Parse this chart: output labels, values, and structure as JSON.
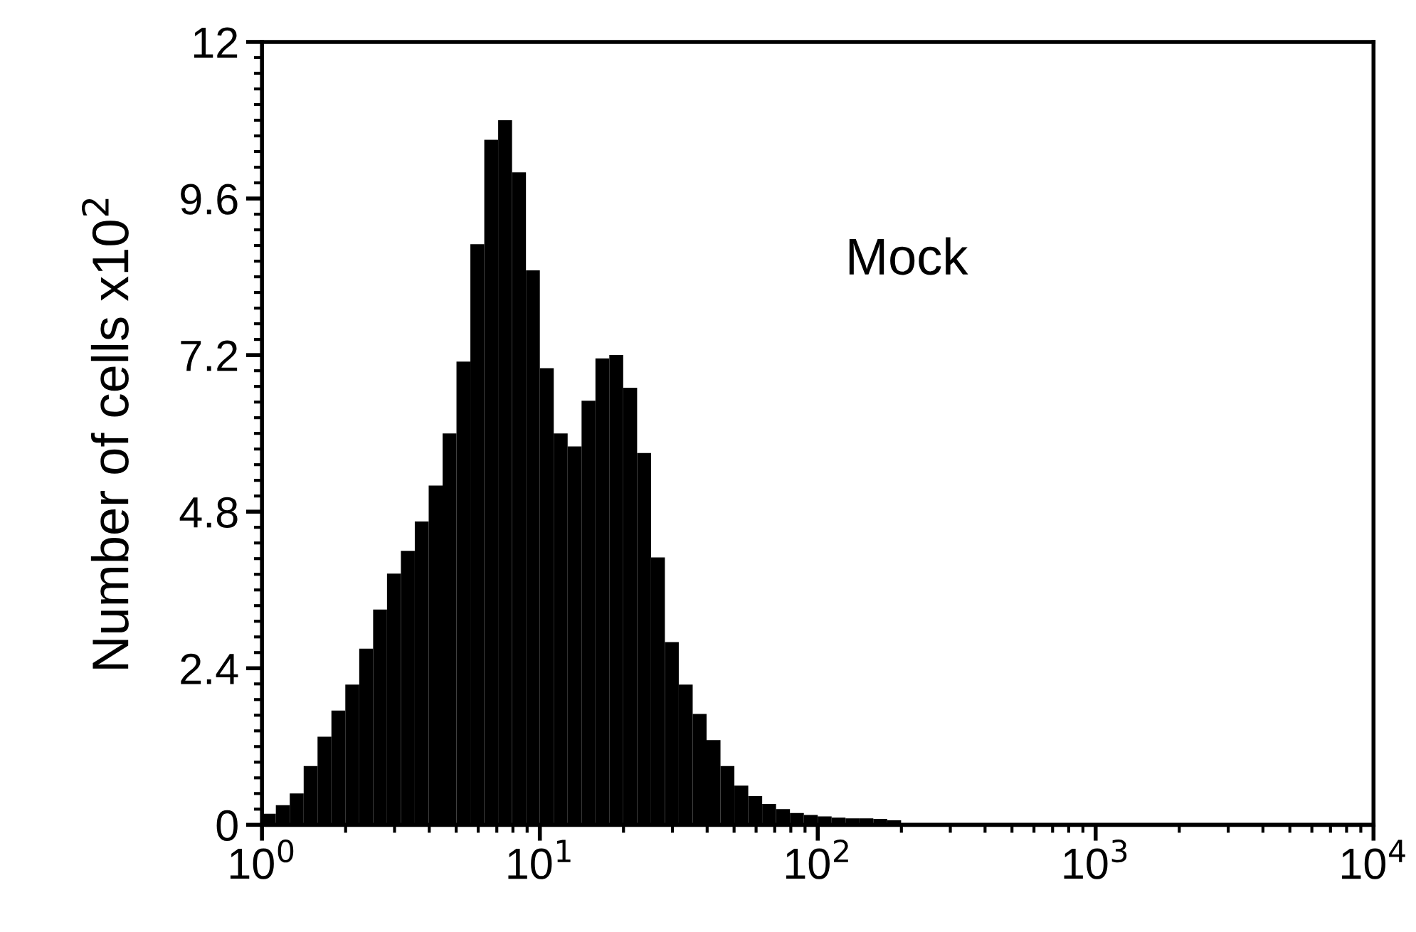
{
  "chart_data": {
    "type": "histogram",
    "ylabel": "Number of cells x10$^{2}$",
    "annotations": [
      "Mock"
    ],
    "color": "#000000",
    "log": "x",
    "grid": false,
    "bins": [
      1,
      1.122,
      1.259,
      1.413,
      1.585,
      1.778,
      1.995,
      2.239,
      2.512,
      2.818,
      3.162,
      3.548,
      3.981,
      4.467,
      5.012,
      5.623,
      6.31,
      7.079,
      7.943,
      8.913,
      10,
      11.22,
      12.59,
      14.13,
      15.85,
      17.78,
      19.95,
      22.39,
      25.12,
      28.18,
      31.62,
      35.48,
      39.81,
      44.67,
      50.12,
      56.23,
      63.1,
      70.79,
      79.43,
      89.13,
      100,
      112.2,
      125.9,
      141.3,
      158.5,
      177.8,
      199.5,
      223.9,
      251.2,
      281.8,
      316.2
    ],
    "values": [
      0.17,
      0.3,
      0.48,
      0.9,
      1.35,
      1.75,
      2.15,
      2.7,
      3.3,
      3.85,
      4.2,
      4.65,
      5.2,
      6.0,
      7.1,
      8.9,
      10.5,
      10.8,
      10.0,
      8.5,
      7.0,
      6.0,
      5.8,
      6.5,
      7.15,
      7.2,
      6.7,
      5.7,
      4.1,
      2.8,
      2.15,
      1.7,
      1.3,
      0.9,
      0.6,
      0.44,
      0.32,
      0.24,
      0.18,
      0.15,
      0.13,
      0.11,
      0.1,
      0.1,
      0.09,
      0.07,
      null,
      null,
      null,
      null
    ],
    "xlim": [
      1,
      10000
    ],
    "xticks": [
      {
        "value": 1,
        "label": "10$^{0}$"
      },
      {
        "value": 10,
        "label": "10$^{1}$"
      },
      {
        "value": 100,
        "label": "10$^{2}$"
      },
      {
        "value": 1000,
        "label": "10$^{3}$"
      },
      {
        "value": 10000,
        "label": "10$^{4}$"
      }
    ],
    "ylim": [
      0,
      12
    ],
    "yticks": [
      0,
      2.4,
      4.8,
      7.2,
      9.6,
      12
    ]
  }
}
